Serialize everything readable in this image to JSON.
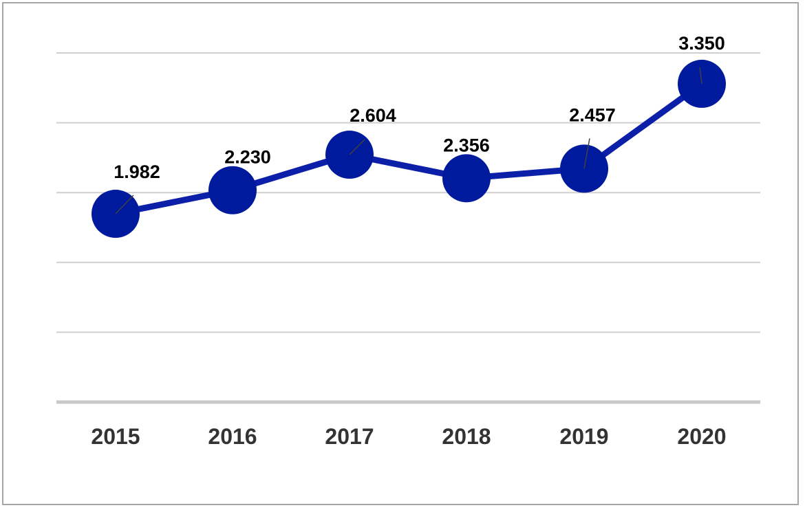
{
  "chart_data": {
    "type": "line",
    "categories": [
      "2015",
      "2016",
      "2017",
      "2018",
      "2019",
      "2020"
    ],
    "series": [
      {
        "values": [
          1.982,
          2.23,
          2.604,
          2.356,
          2.457,
          3.35
        ]
      }
    ],
    "data_labels": [
      "1.982",
      "2.230",
      "2.604",
      "2.356",
      "2.457",
      "3.350"
    ],
    "title": "",
    "xlabel": "",
    "ylabel": "",
    "ylim": [
      0,
      3.675
    ],
    "y_gridlines": [
      0.735,
      1.47,
      2.205,
      2.94,
      3.675
    ],
    "grid": true,
    "legend": "none",
    "colors": {
      "line": "#0c1fa8",
      "marker": "#001a9e",
      "gridline": "#cfcfcf",
      "axis": "#c8c8c8",
      "label": "#000000",
      "tick": "#333333",
      "frame": "#a6a6a6"
    }
  }
}
